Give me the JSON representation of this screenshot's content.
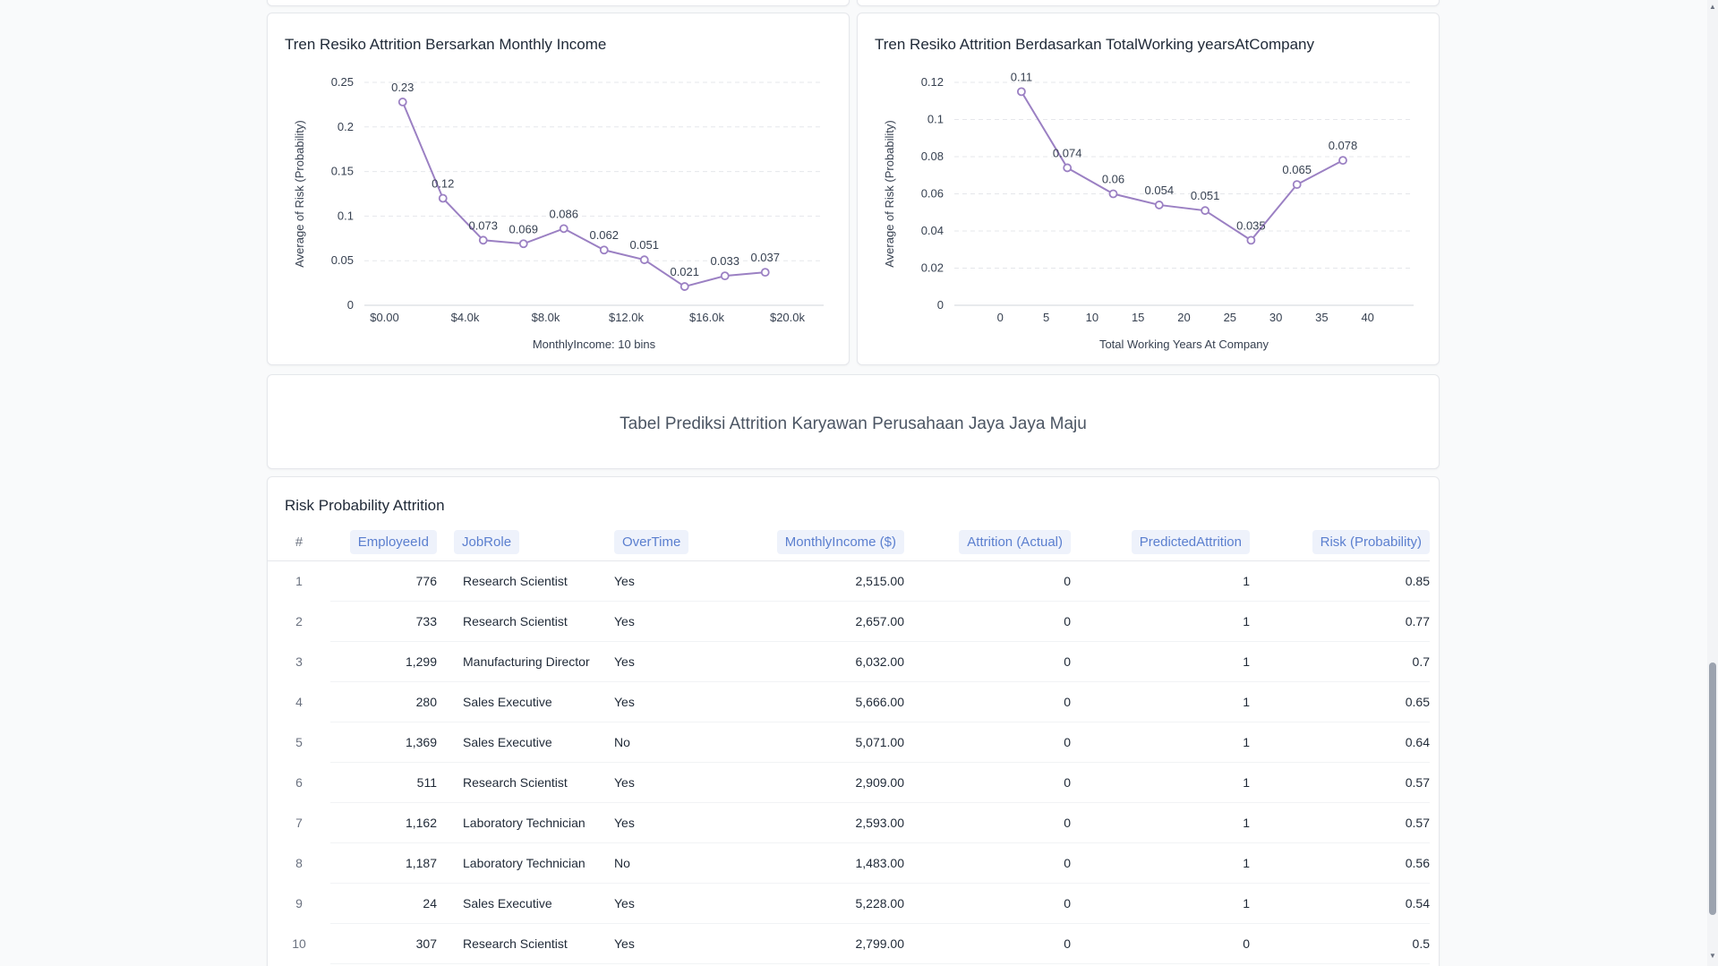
{
  "chart1": {
    "title": "Tren Resiko Attrition Bersarkan Monthly Income",
    "chart_data": {
      "type": "line",
      "x_tick_labels": [
        "$0.00",
        "$4.0k",
        "$8.0k",
        "$12.0k",
        "$16.0k",
        "$20.0k"
      ],
      "x_ticks": [
        0,
        4000,
        8000,
        12000,
        16000,
        20000
      ],
      "xlim": [
        -1000,
        21800
      ],
      "y_ticks": [
        0,
        0.05,
        0.1,
        0.15,
        0.2,
        0.25
      ],
      "y_tick_labels": [
        "0",
        "0.05",
        "0.1",
        "0.15",
        "0.2",
        "0.25"
      ],
      "ylim": [
        0,
        0.25
      ],
      "xlabel": "MonthlyIncome: 10 bins",
      "ylabel": "Average of Risk (Probability)",
      "x": [
        900,
        2900,
        4900,
        6900,
        8900,
        10900,
        12900,
        14900,
        16900,
        18900
      ],
      "y": [
        0.228,
        0.12,
        0.073,
        0.069,
        0.086,
        0.062,
        0.051,
        0.021,
        0.033,
        0.037
      ],
      "labels": [
        "0.23",
        "0.12",
        "0.073",
        "0.069",
        "0.086",
        "0.062",
        "0.051",
        "0.021",
        "0.033",
        "0.037"
      ],
      "color": "#9b80c3",
      "grid": true
    }
  },
  "chart2": {
    "title": "Tren Resiko Attrition Berdasarkan TotalWorking yearsAtCompany",
    "chart_data": {
      "type": "line",
      "x_tick_labels": [
        "0",
        "5",
        "10",
        "15",
        "20",
        "25",
        "30",
        "35",
        "40"
      ],
      "x_ticks": [
        0,
        5,
        10,
        15,
        20,
        25,
        30,
        35,
        40
      ],
      "xlim": [
        -5,
        45
      ],
      "y_ticks": [
        0,
        0.02,
        0.04,
        0.06,
        0.08,
        0.1,
        0.12
      ],
      "y_tick_labels": [
        "0",
        "0.02",
        "0.04",
        "0.06",
        "0.08",
        "0.1",
        "0.12"
      ],
      "ylim": [
        0,
        0.12
      ],
      "xlabel": "Total Working Years At Company",
      "ylabel": "Average of Risk (Probability)",
      "x": [
        2.3,
        7.3,
        12.3,
        17.3,
        22.3,
        27.3,
        32.3,
        37.3
      ],
      "y": [
        0.115,
        0.074,
        0.06,
        0.054,
        0.051,
        0.035,
        0.065,
        0.078
      ],
      "labels": [
        "0.11",
        "0.074",
        "0.06",
        "0.054",
        "0.051",
        "0.035",
        "0.065",
        "0.078"
      ],
      "color": "#9b80c3",
      "grid": true
    }
  },
  "banner": {
    "text": "Tabel Prediksi Attrition Karyawan Perusahaan Jaya Jaya Maju"
  },
  "table": {
    "title": "Risk Probability Attrition",
    "index_header": "#",
    "columns": [
      "EmployeeId",
      "JobRole",
      "OverTime",
      "MonthlyIncome ($)",
      "Attrition (Actual)",
      "PredictedAttrition",
      "Risk (Probability)"
    ],
    "rows": [
      [
        "1",
        "776",
        "Research Scientist",
        "Yes",
        "2,515.00",
        "0",
        "1",
        "0.85"
      ],
      [
        "2",
        "733",
        "Research Scientist",
        "Yes",
        "2,657.00",
        "0",
        "1",
        "0.77"
      ],
      [
        "3",
        "1,299",
        "Manufacturing Director",
        "Yes",
        "6,032.00",
        "0",
        "1",
        "0.7"
      ],
      [
        "4",
        "280",
        "Sales Executive",
        "Yes",
        "5,666.00",
        "0",
        "1",
        "0.65"
      ],
      [
        "5",
        "1,369",
        "Sales Executive",
        "No",
        "5,071.00",
        "0",
        "1",
        "0.64"
      ],
      [
        "6",
        "511",
        "Research Scientist",
        "Yes",
        "2,909.00",
        "0",
        "1",
        "0.57"
      ],
      [
        "7",
        "1,162",
        "Laboratory Technician",
        "Yes",
        "2,593.00",
        "0",
        "1",
        "0.57"
      ],
      [
        "8",
        "1,187",
        "Laboratory Technician",
        "No",
        "1,483.00",
        "0",
        "1",
        "0.56"
      ],
      [
        "9",
        "24",
        "Sales Executive",
        "Yes",
        "5,228.00",
        "0",
        "1",
        "0.54"
      ],
      [
        "10",
        "307",
        "Research Scientist",
        "Yes",
        "2,799.00",
        "0",
        "0",
        "0.5"
      ]
    ]
  }
}
